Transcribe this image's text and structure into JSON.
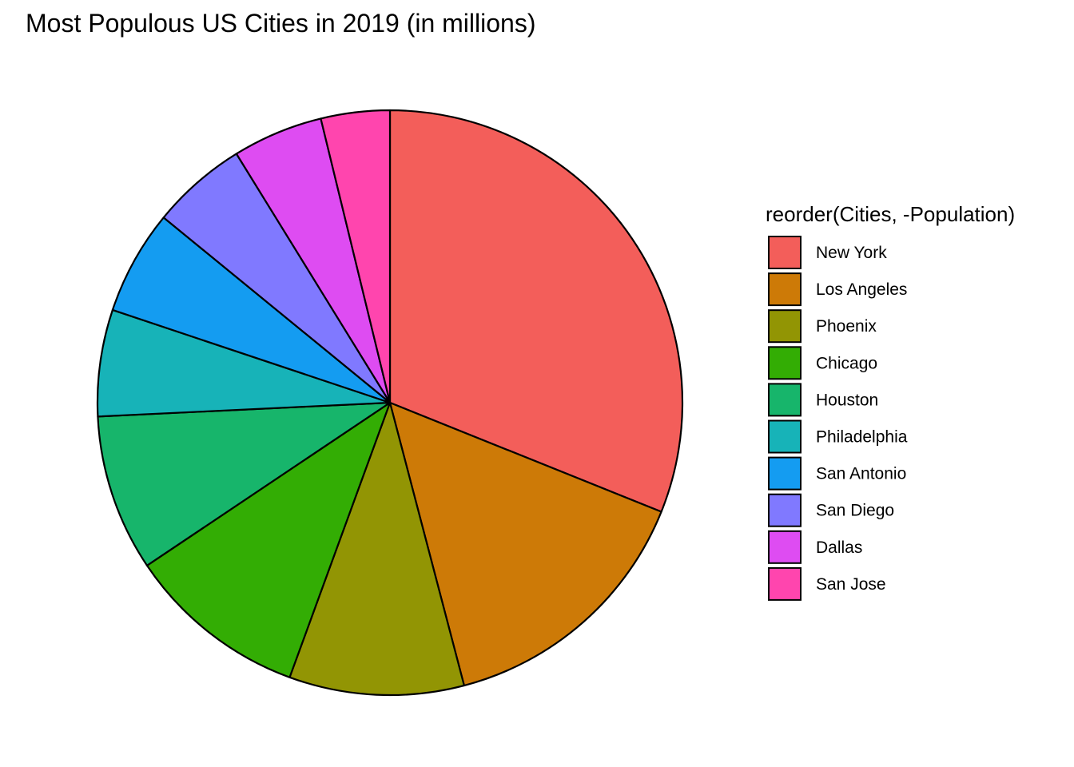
{
  "chart_data": {
    "type": "pie",
    "title": "Most Populous US Cities in 2019 (in millions)",
    "legend_title": "reorder(Cities, -Population)",
    "legend_position": "right",
    "start_angle": "12 o'clock",
    "direction": "clockwise",
    "unit": "millions",
    "slices": [
      {
        "label": "New York",
        "value": 8.34,
        "color": "#F35E5A"
      },
      {
        "label": "Los Angeles",
        "value": 3.98,
        "color": "#CD7A07"
      },
      {
        "label": "Phoenix",
        "value": 2.59,
        "color": "#929504"
      },
      {
        "label": "Chicago",
        "value": 2.69,
        "color": "#33AD04"
      },
      {
        "label": "Houston",
        "value": 2.32,
        "color": "#17B56B"
      },
      {
        "label": "Philadelphia",
        "value": 1.58,
        "color": "#17B3B8"
      },
      {
        "label": "San Antonio",
        "value": 1.55,
        "color": "#149CF1"
      },
      {
        "label": "San Diego",
        "value": 1.42,
        "color": "#8079FF"
      },
      {
        "label": "Dallas",
        "value": 1.34,
        "color": "#DE4CF2"
      },
      {
        "label": "San Jose",
        "value": 1.02,
        "color": "#FF45AE"
      }
    ]
  }
}
